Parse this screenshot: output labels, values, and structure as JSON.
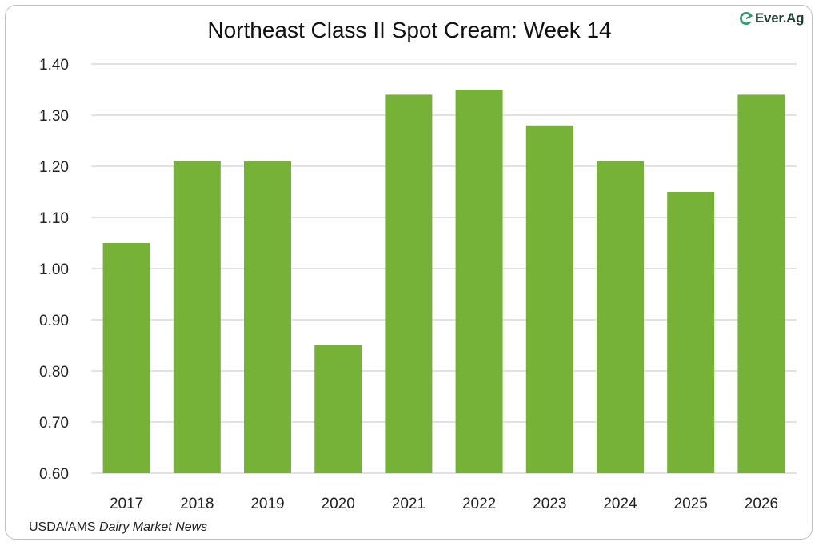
{
  "header": {
    "logo_text": "Ever.Ag",
    "logo_icon": "everag-logo-icon"
  },
  "footer": {
    "source_prefix": "USDA/AMS ",
    "source_italic": "Dairy Market News"
  },
  "chart_data": {
    "type": "bar",
    "title": "Northeast Class II Spot Cream: Week 14",
    "xlabel": "",
    "ylabel": "",
    "categories": [
      "2017",
      "2018",
      "2019",
      "2020",
      "2021",
      "2022",
      "2023",
      "2024",
      "2025",
      "2026"
    ],
    "values": [
      1.05,
      1.21,
      1.21,
      0.85,
      1.34,
      1.35,
      1.28,
      1.21,
      1.15,
      1.34
    ],
    "ylim": [
      0.6,
      1.4
    ],
    "yticks": [
      "0.60",
      "0.70",
      "0.80",
      "0.90",
      "1.00",
      "1.10",
      "1.20",
      "1.30",
      "1.40"
    ],
    "grid": true,
    "legend": "none",
    "bar_color": "#77b238",
    "grid_color": "#d0d0d0"
  }
}
